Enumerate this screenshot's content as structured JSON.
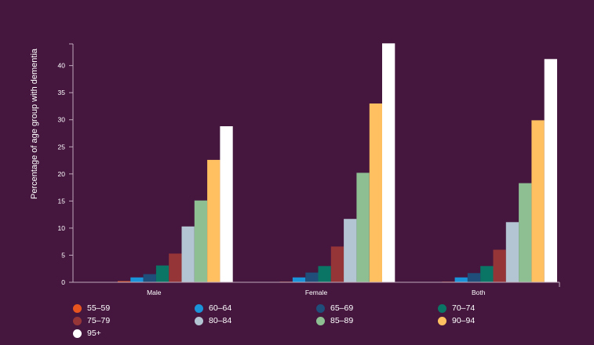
{
  "chart_data": {
    "type": "bar",
    "ylabel": "Percentage of age group with dementia",
    "xlabel": "",
    "ylim": [
      0,
      44
    ],
    "yticks": [
      0,
      5,
      10,
      15,
      20,
      25,
      30,
      35,
      40
    ],
    "categories": [
      "Male",
      "Female",
      "Both"
    ],
    "legend_position": "bottom",
    "series": [
      {
        "name": "55–59",
        "color": "#e8551f",
        "values": [
          0.2,
          0.1,
          0.1
        ]
      },
      {
        "name": "60–64",
        "color": "#1b93d9",
        "values": [
          0.9,
          0.9,
          0.9
        ]
      },
      {
        "name": "65–69",
        "color": "#1e4e79",
        "values": [
          1.5,
          1.8,
          1.7
        ]
      },
      {
        "name": "70–74",
        "color": "#0b7565",
        "values": [
          3.1,
          3.0,
          3.0
        ]
      },
      {
        "name": "75–79",
        "color": "#963537",
        "values": [
          5.3,
          6.6,
          6.0
        ]
      },
      {
        "name": "80–84",
        "color": "#b3c5d2",
        "values": [
          10.3,
          11.7,
          11.1
        ]
      },
      {
        "name": "85–89",
        "color": "#8dbf93",
        "values": [
          15.1,
          20.2,
          18.3
        ]
      },
      {
        "name": "90–94",
        "color": "#fec060",
        "values": [
          22.6,
          33.0,
          29.9
        ]
      },
      {
        "name": "95+",
        "color": "#ffffff",
        "values": [
          28.8,
          44.1,
          41.2
        ]
      }
    ]
  }
}
